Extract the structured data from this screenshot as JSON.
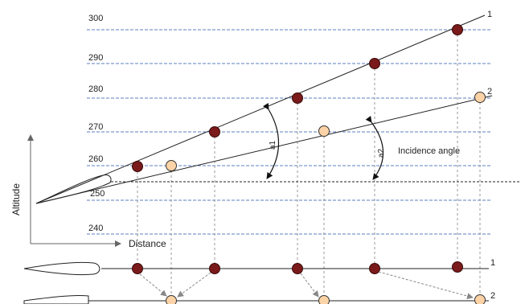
{
  "altitude_levels": [
    "300",
    "290",
    "280",
    "270",
    "260",
    "250",
    "240"
  ],
  "axis": {
    "y_label": "Altitude",
    "x_label": "Distance"
  },
  "lines": {
    "line1_label": "1",
    "line2_label": "2",
    "bottom1_label": "1",
    "bottom2_label": "2"
  },
  "angles": {
    "a1": "a1",
    "a2": "a2",
    "incidence_label": "Incidence angle"
  },
  "colors": {
    "dark_point": "#7a1a1a",
    "light_point": "#fcd3a6",
    "grid": "#5b7fbf",
    "drop_line": "#999999"
  }
}
